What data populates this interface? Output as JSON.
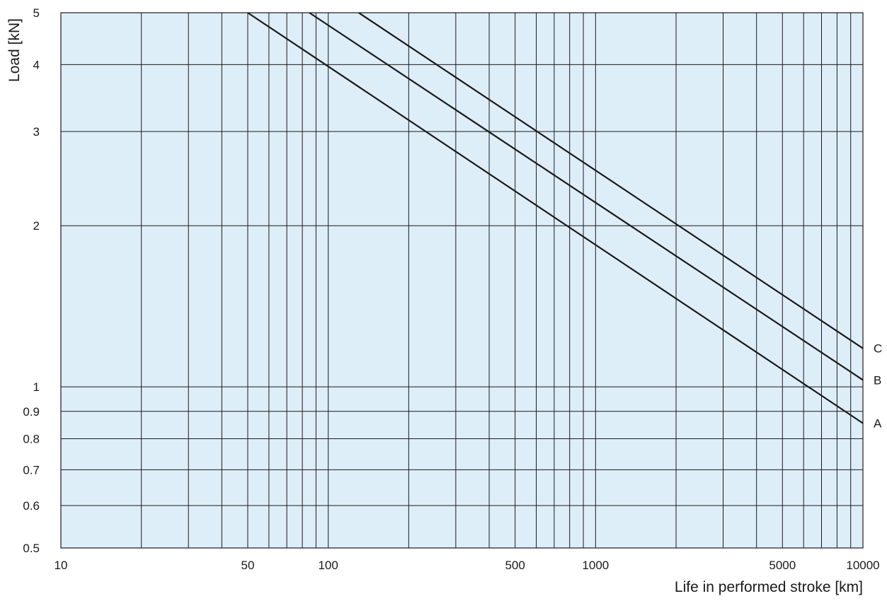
{
  "chart_data": {
    "type": "line",
    "xscale": "log",
    "yscale": "log",
    "xlim": [
      10,
      10000
    ],
    "ylim": [
      0.5,
      5
    ],
    "xlabel": "Life in performed stroke [km]",
    "ylabel": "Load [kN]",
    "x_ticks": [
      10,
      50,
      100,
      500,
      1000,
      5000,
      10000
    ],
    "x_tick_labels": [
      "10",
      "50",
      "100",
      "500",
      "1000",
      "5000",
      "10000"
    ],
    "x_gridlines": [
      20,
      30,
      40,
      50,
      60,
      70,
      80,
      90,
      100,
      200,
      300,
      400,
      500,
      600,
      700,
      800,
      900,
      1000,
      2000,
      3000,
      4000,
      5000,
      6000,
      7000,
      8000,
      9000
    ],
    "y_ticks": [
      0.5,
      0.6,
      0.7,
      0.8,
      0.9,
      1,
      2,
      3,
      4,
      5
    ],
    "y_tick_labels": [
      "0.5",
      "0.6",
      "0.7",
      "0.8",
      "0.9",
      "1",
      "2",
      "3",
      "4",
      "5"
    ],
    "grid": true,
    "plot_background": "#deeef9",
    "grid_color": "#1a1a1a",
    "line_color": "#1a1a1a",
    "series": [
      {
        "name": "A",
        "x": [
          50,
          10000
        ],
        "y": [
          5,
          0.855
        ]
      },
      {
        "name": "B",
        "x": [
          85,
          10000
        ],
        "y": [
          5,
          1.03
        ]
      },
      {
        "name": "C",
        "x": [
          130,
          10000
        ],
        "y": [
          5,
          1.18
        ]
      }
    ]
  }
}
